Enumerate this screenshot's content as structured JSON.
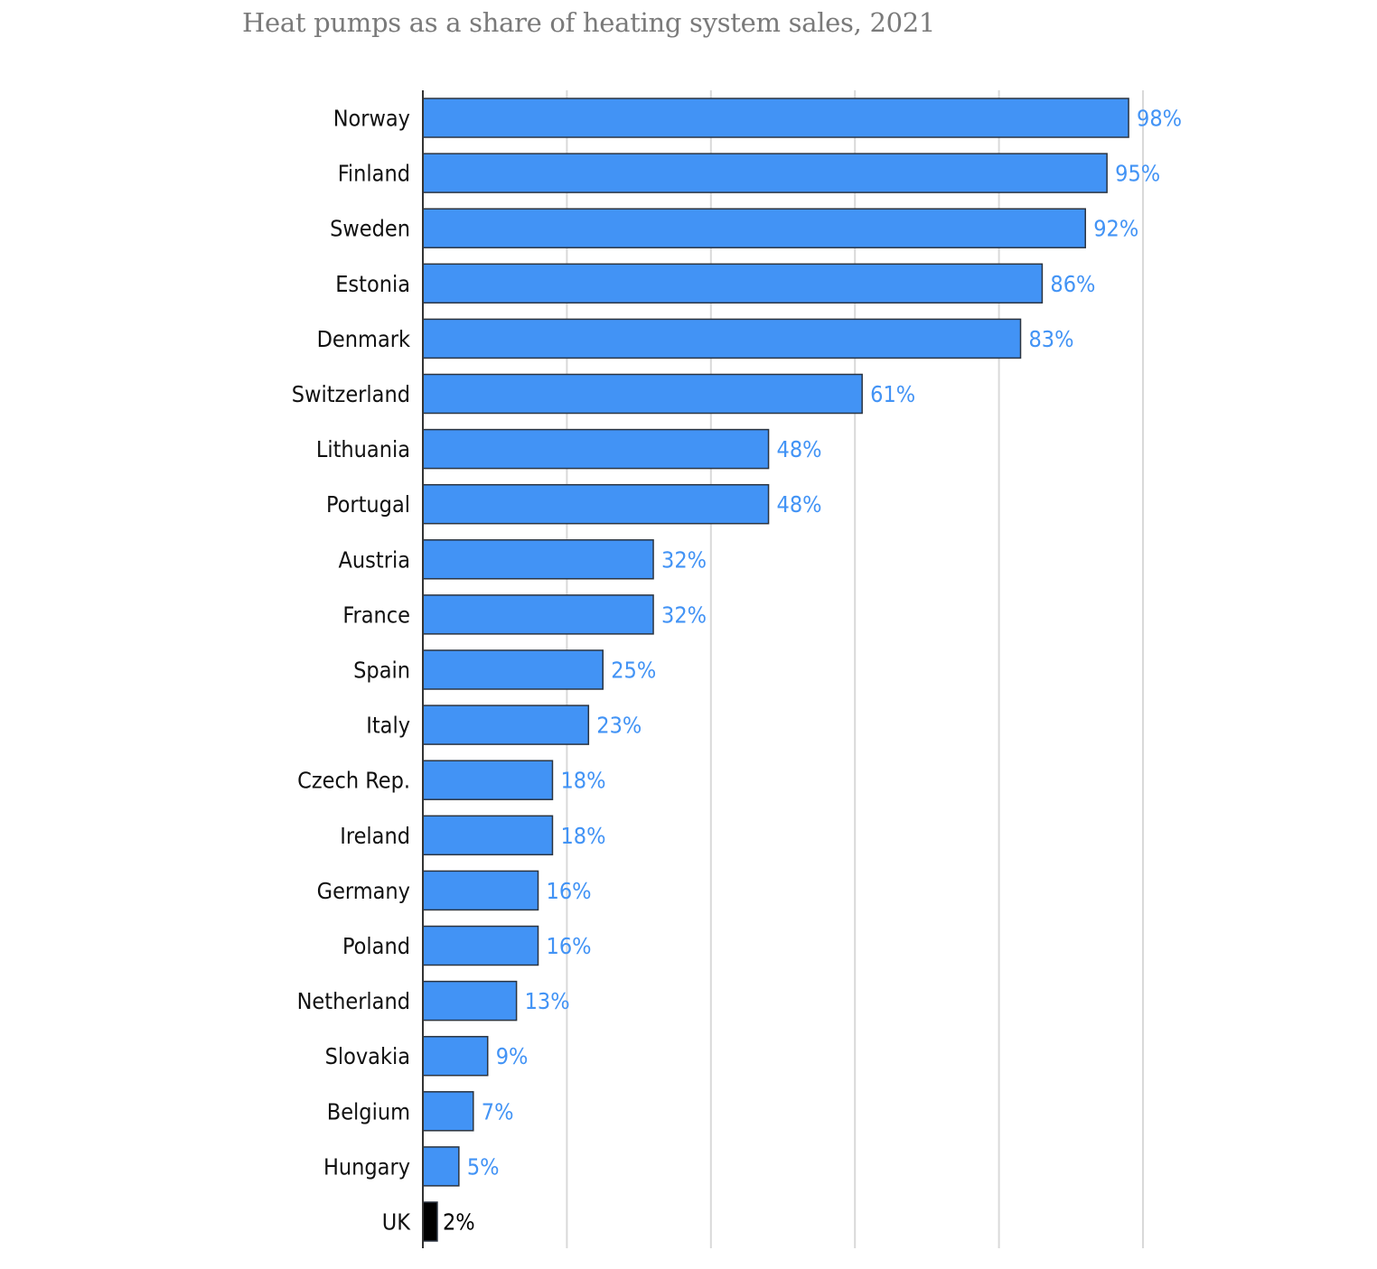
{
  "chart_data": {
    "type": "bar",
    "orientation": "horizontal",
    "title": "Heat pumps as a share of heating system sales, 2021",
    "categories": [
      "Norway",
      "Finland",
      "Sweden",
      "Estonia",
      "Denmark",
      "Switzerland",
      "Lithuania",
      "Portugal",
      "Austria",
      "France",
      "Spain",
      "Italy",
      "Czech Rep.",
      "Ireland",
      "Germany",
      "Poland",
      "Netherland",
      "Slovakia",
      "Belgium",
      "Hungary",
      "UK"
    ],
    "values": [
      98,
      95,
      92,
      86,
      83,
      61,
      48,
      48,
      32,
      32,
      25,
      23,
      18,
      18,
      16,
      16,
      13,
      9,
      7,
      5,
      2
    ],
    "value_labels": [
      "98%",
      "95%",
      "92%",
      "86%",
      "83%",
      "61%",
      "48%",
      "48%",
      "32%",
      "32%",
      "25%",
      "23%",
      "18%",
      "18%",
      "16%",
      "16%",
      "13%",
      "9%",
      "7%",
      "5%",
      "2%"
    ],
    "highlight": "UK",
    "xlim": [
      0,
      100
    ],
    "grid": true,
    "xlabel": "",
    "ylabel": "",
    "colors": {
      "bar": "#4293f5",
      "bar_stroke": "#2b3440",
      "highlight_bar": "#000000",
      "value_label": "#4293f5",
      "highlight_label": "#000000",
      "gridline": "#d9d9d9",
      "axis": "#333333"
    }
  }
}
